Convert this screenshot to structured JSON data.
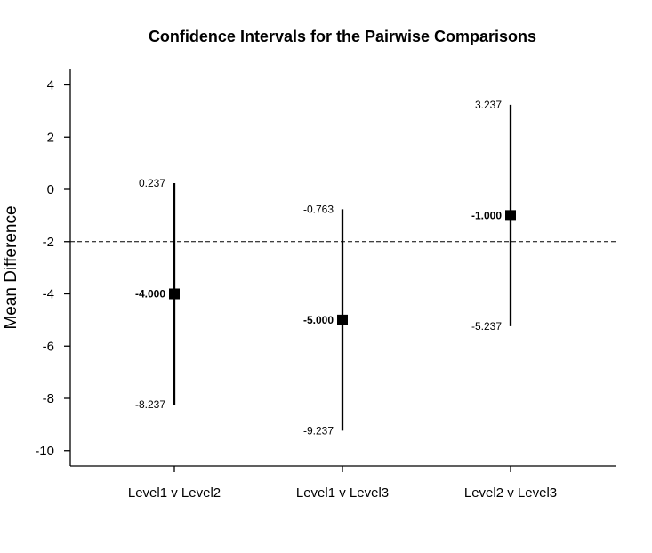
{
  "chart_data": {
    "type": "errorbar",
    "title": "Confidence Intervals for the Pairwise Comparisons",
    "ylabel": "Mean Difference",
    "xlabel": "",
    "ylim": [
      -10.5,
      4.5
    ],
    "yticks": [
      4,
      2,
      0,
      -2,
      -4,
      -6,
      -8,
      -10
    ],
    "reference_line": -2,
    "categories": [
      "Level1 v Level2",
      "Level1 v Level3",
      "Level2 v Level3"
    ],
    "points": [
      {
        "category": "Level1 v Level2",
        "mean": -4.0,
        "lower": -8.237,
        "upper": 0.237,
        "mean_label": "-4.000",
        "lower_label": "-8.237",
        "upper_label": "0.237"
      },
      {
        "category": "Level1 v Level3",
        "mean": -5.0,
        "lower": -9.237,
        "upper": -0.763,
        "mean_label": "-5.000",
        "lower_label": "-9.237",
        "upper_label": "-0.763"
      },
      {
        "category": "Level2 v Level3",
        "mean": -1.0,
        "lower": -5.237,
        "upper": 3.237,
        "mean_label": "-1.000",
        "lower_label": "-5.237",
        "upper_label": "3.237"
      }
    ]
  }
}
